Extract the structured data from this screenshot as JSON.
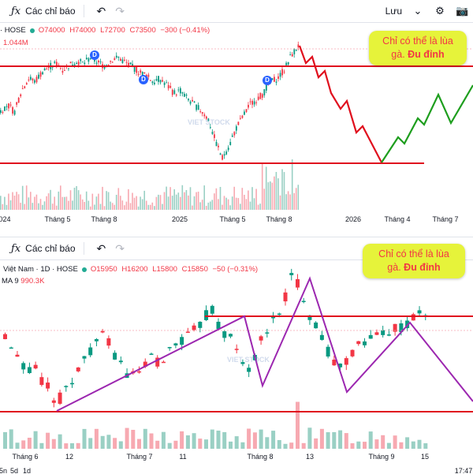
{
  "top": {
    "toolbar": {
      "indicators_label": "Các chỉ báo",
      "save_label": "Lưu"
    },
    "legend": {
      "exchange": "· HOSE",
      "open": "O74000",
      "high": "H74000",
      "low": "L72700",
      "close": "C73500",
      "change": "−300 (−0.41%)"
    },
    "volume_value": "1.044M",
    "event_marker": "D",
    "watermark": "VIET STOCK",
    "annotation": {
      "line1": "Chỉ có thể là lùa",
      "line2_plain": "gà.",
      "line2_bold": "Đu đỉnh"
    },
    "x_axis_labels": [
      "024",
      "Tháng 5",
      "Tháng 8",
      "2025",
      "Tháng 5",
      "Tháng 8",
      "2026",
      "Tháng 4",
      "Tháng 7"
    ]
  },
  "bottom": {
    "toolbar": {
      "indicators_label": "Các chỉ báo"
    },
    "legend": {
      "title": "Việt Nam · 1D · HOSE",
      "open": "O15950",
      "high": "H16200",
      "low": "L15800",
      "close": "C15850",
      "change": "−50 (−0.31%)"
    },
    "volume_legend": {
      "label": "MA 9",
      "value": "990.3K"
    },
    "watermark": "VIET STOCK",
    "annotation": {
      "line1": "Chỉ có thể là lùa",
      "line2_plain": "gà.",
      "line2_bold": "Đu đỉnh"
    },
    "x_axis_labels": [
      "Tháng 6",
      "12",
      "Tháng 7",
      "11",
      "Tháng 8",
      "13",
      "Tháng 9",
      "15"
    ],
    "footer_partial": [
      "5n",
      "5d",
      "1d",
      "17:47"
    ]
  },
  "colors": {
    "up": "#089981",
    "down": "#f23645",
    "level_line": "#e0101e",
    "projection_down": "#e0101e",
    "projection_up": "#1e9e1e",
    "pattern_line": "#9c27b0",
    "annotation_bg": "#e6f33a",
    "vol_up": "#9ad0c4",
    "vol_down": "#f7a9b1"
  },
  "chart_data": [
    {
      "type": "candlestick",
      "name": "top",
      "x_ticks": [
        "024",
        "Tháng 5",
        "Tháng 8",
        "2025",
        "Tháng 5",
        "Tháng 8",
        "2026",
        "Tháng 4",
        "Tháng 7"
      ],
      "last_ohlc": {
        "open": 74000,
        "high": 74000,
        "low": 72700,
        "close": 73500,
        "change": -300,
        "change_pct": -0.41
      },
      "volume_last": "1.044M",
      "horizontal_levels": [
        "resistance",
        "support"
      ],
      "projection": [
        "drop from peak to support",
        "rebound afterwards"
      ],
      "price_path_norm": [
        0.45,
        0.5,
        0.44,
        0.62,
        0.72,
        0.7,
        0.78,
        0.82,
        0.85,
        0.8,
        0.84,
        0.87,
        0.85,
        0.9,
        0.86,
        0.83,
        0.88,
        0.9,
        0.86,
        0.82,
        0.78,
        0.75,
        0.7,
        0.72,
        0.67,
        0.6,
        0.62,
        0.55,
        0.5,
        0.45,
        0.38,
        0.2,
        0.05,
        0.15,
        0.3,
        0.4,
        0.5,
        0.55,
        0.6,
        0.7,
        0.72,
        0.8,
        0.92,
        1.0
      ]
    },
    {
      "type": "candlestick",
      "name": "bottom",
      "title": "Việt Nam · 1D · HOSE",
      "x_ticks": [
        "Tháng 6",
        "12",
        "Tháng 7",
        "11",
        "Tháng 8",
        "13",
        "Tháng 9",
        "15"
      ],
      "last_ohlc": {
        "open": 15950,
        "high": 16200,
        "low": 15800,
        "close": 15850,
        "change": -50,
        "change_pct": -0.31
      },
      "volume_ma": {
        "period": 9,
        "value": "990.3K"
      },
      "horizontal_levels": [
        "resistance",
        "support"
      ],
      "pattern": "zigzag",
      "price_path_norm": [
        0.55,
        0.45,
        0.38,
        0.28,
        0.3,
        0.22,
        0.15,
        0.05,
        0.12,
        0.22,
        0.3,
        0.4,
        0.48,
        0.55,
        0.5,
        0.4,
        0.3,
        0.22,
        0.28,
        0.33,
        0.38,
        0.35,
        0.42,
        0.48,
        0.52,
        0.55,
        0.6,
        0.68,
        0.75,
        0.62,
        0.55,
        0.5,
        0.35,
        0.3,
        0.4,
        0.55,
        0.62,
        0.72,
        0.85,
        1.0,
        0.92,
        0.75,
        0.62,
        0.55,
        0.4,
        0.3,
        0.35,
        0.42,
        0.5,
        0.48,
        0.55,
        0.6,
        0.58,
        0.62,
        0.6,
        0.65,
        0.72,
        0.7
      ]
    }
  ]
}
